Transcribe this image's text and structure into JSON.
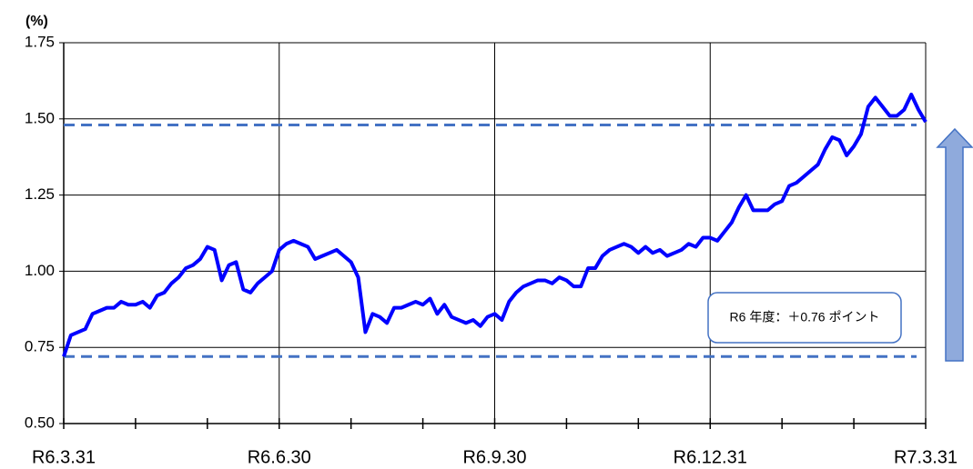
{
  "chart_data": {
    "type": "line",
    "y_unit": "(%)",
    "color": "#0000ff",
    "categories": [
      "R6.3.31",
      null,
      null,
      null,
      null,
      null,
      null,
      null,
      null,
      null,
      null,
      null,
      null,
      null,
      null,
      null,
      null,
      null,
      null,
      null,
      null,
      null,
      null,
      null,
      null,
      null,
      null,
      null,
      null,
      null,
      "R6.6.30",
      null,
      null,
      null,
      null,
      null,
      null,
      null,
      null,
      null,
      null,
      null,
      null,
      null,
      null,
      null,
      null,
      null,
      null,
      null,
      null,
      null,
      null,
      null,
      null,
      null,
      null,
      null,
      null,
      null,
      "R6.9.30",
      null,
      null,
      null,
      null,
      null,
      null,
      null,
      null,
      null,
      null,
      null,
      null,
      null,
      null,
      null,
      null,
      null,
      null,
      null,
      null,
      null,
      null,
      null,
      null,
      null,
      null,
      null,
      null,
      null,
      "R6.12.31",
      null,
      null,
      null,
      null,
      null,
      null,
      null,
      null,
      null,
      null,
      null,
      null,
      null,
      null,
      null,
      null,
      null,
      null,
      null,
      null,
      null,
      null,
      null,
      null,
      null,
      null,
      null,
      null,
      null,
      "R7.3.31"
    ],
    "values": [
      0.72,
      0.79,
      0.8,
      0.81,
      0.86,
      0.87,
      0.88,
      0.88,
      0.9,
      0.89,
      0.89,
      0.9,
      0.88,
      0.92,
      0.93,
      0.96,
      0.98,
      1.01,
      1.02,
      1.04,
      1.08,
      1.07,
      0.97,
      1.02,
      1.03,
      0.94,
      0.93,
      0.96,
      0.98,
      1.0,
      1.07,
      1.09,
      1.1,
      1.09,
      1.08,
      1.04,
      1.05,
      1.06,
      1.07,
      1.05,
      1.03,
      0.98,
      0.8,
      0.86,
      0.85,
      0.83,
      0.88,
      0.88,
      0.89,
      0.9,
      0.89,
      0.91,
      0.86,
      0.89,
      0.85,
      0.84,
      0.83,
      0.84,
      0.82,
      0.85,
      0.86,
      0.84,
      0.9,
      0.93,
      0.95,
      0.96,
      0.97,
      0.97,
      0.96,
      0.98,
      0.97,
      0.95,
      0.95,
      1.01,
      1.01,
      1.05,
      1.07,
      1.08,
      1.09,
      1.08,
      1.06,
      1.08,
      1.06,
      1.07,
      1.05,
      1.06,
      1.07,
      1.09,
      1.08,
      1.11,
      1.11,
      1.1,
      1.13,
      1.16,
      1.21,
      1.25,
      1.2,
      1.2,
      1.2,
      1.22,
      1.23,
      1.28,
      1.29,
      1.31,
      1.33,
      1.35,
      1.4,
      1.44,
      1.43,
      1.38,
      1.41,
      1.45,
      1.54,
      1.57,
      1.54,
      1.51,
      1.51,
      1.53,
      1.58,
      1.53,
      1.49
    ],
    "ylim": [
      0.5,
      1.75
    ],
    "yticks": [
      {
        "value": 0.5,
        "label": "0.50"
      },
      0.75,
      {
        "value": 1.0,
        "label": "1.00"
      },
      1.25,
      {
        "value": 1.5,
        "label": "1.50"
      },
      1.75
    ],
    "grid": true,
    "reference_lines": [
      {
        "value": 1.48,
        "color": "#4472c4"
      },
      {
        "value": 0.72,
        "color": "#4472c4"
      }
    ],
    "annotation": "R6 年度：＋0.76 ポイント"
  }
}
